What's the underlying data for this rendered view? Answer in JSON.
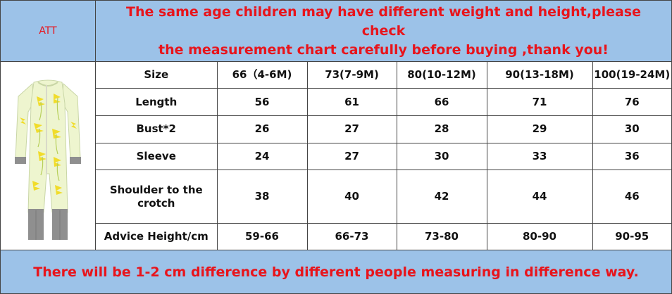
{
  "header": {
    "att_label": "ATT",
    "notice_line1": "The same age children may have different weight and height,please check",
    "notice_line2": "the measurement chart carefully before buying ,thank you!"
  },
  "product_image": {
    "icon": "baby-romper-icon",
    "colors": {
      "fabric": "#eef5cf",
      "leaf": "#f1dc2a",
      "stem": "#b7cf5a",
      "cuff": "#8f8f8f",
      "zip": "#d9d9c9"
    }
  },
  "size_table": {
    "columns": [
      "Size",
      "66（4-6M)",
      "73(7-9M)",
      "80(10-12M)",
      "90(13-18M)",
      "100(19-24M)"
    ],
    "rows": [
      {
        "label": "Length",
        "values": [
          "56",
          "61",
          "66",
          "71",
          "76"
        ]
      },
      {
        "label": "Bust*2",
        "values": [
          "26",
          "27",
          "28",
          "29",
          "30"
        ]
      },
      {
        "label": "Sleeve",
        "values": [
          "24",
          "27",
          "30",
          "33",
          "36"
        ]
      },
      {
        "label_line1": "Shoulder to the",
        "label_line2": "crotch",
        "values": [
          "38",
          "40",
          "42",
          "44",
          "46"
        ]
      },
      {
        "label": "Advice Height/cm",
        "values": [
          "59-66",
          "66-73",
          "73-80",
          "80-90",
          "90-95"
        ]
      }
    ]
  },
  "footer": {
    "notice": "There will be 1-2 cm difference by different people measuring in difference way."
  },
  "colors": {
    "band": "#9cc2e8",
    "accent_text": "#e8141b",
    "border": "#444444"
  }
}
